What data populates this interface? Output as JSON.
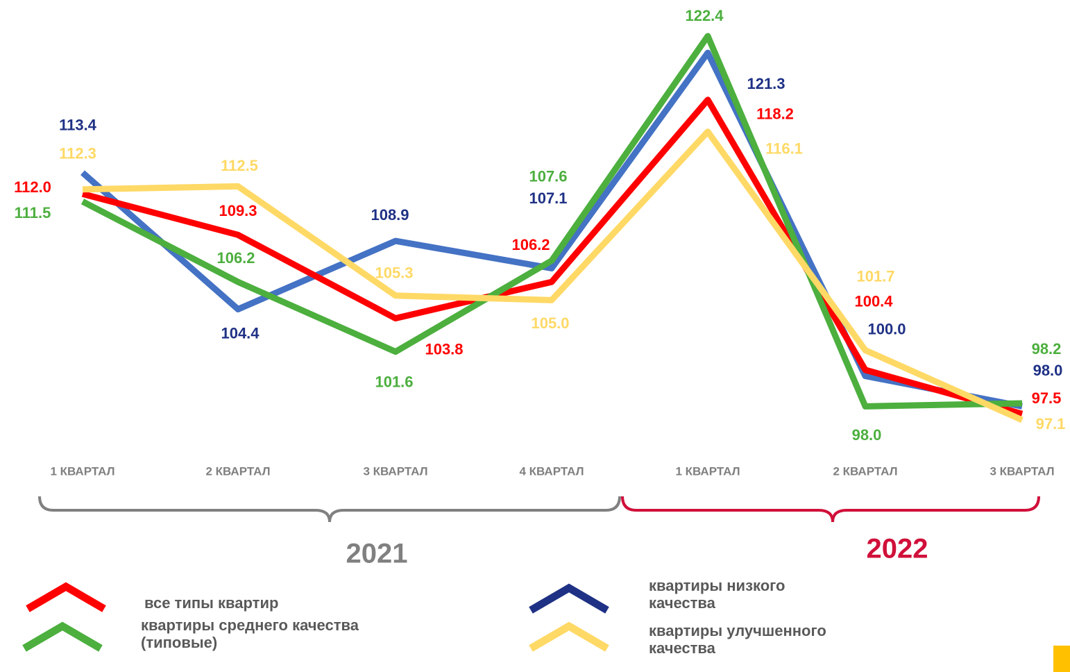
{
  "chart_data": {
    "type": "line",
    "groups": [
      {
        "label": "2021",
        "categories": [
          "1 КВАРТАЛ",
          "2 КВАРТАЛ",
          "3 КВАРТАЛ",
          "4 КВАРТАЛ"
        ]
      },
      {
        "label": "2022",
        "categories": [
          "1 КВАРТАЛ",
          "2 КВАРТАЛ",
          "3 КВАРТАЛ"
        ]
      }
    ],
    "series": [
      {
        "name": "все типы квартир",
        "color": "#ff0000",
        "label_color": "#ff0000",
        "values": [
          112.0,
          109.3,
          103.8,
          106.2,
          118.2,
          100.4,
          97.5
        ],
        "value_labels": [
          "112.0",
          "109.3",
          "103.8",
          "106.2",
          "118.2",
          "100.4",
          "97.5"
        ]
      },
      {
        "name": "квартиры низкого качества",
        "color": "#4472c4",
        "label_color": "#1f3185",
        "values": [
          113.4,
          104.4,
          108.9,
          107.1,
          121.3,
          100.0,
          98.0
        ],
        "value_labels": [
          "113.4",
          "104.4",
          "108.9",
          "107.1",
          "121.3",
          "100.0",
          "98.0"
        ]
      },
      {
        "name": "квартиры среднего качества (типовые)",
        "color": "#4caf3e",
        "label_color": "#4caf3e",
        "values": [
          111.5,
          106.2,
          101.6,
          107.6,
          122.4,
          98.0,
          98.2
        ],
        "value_labels": [
          "111.5",
          "106.2",
          "101.6",
          "107.6",
          "122.4",
          "98.0",
          "98.2"
        ]
      },
      {
        "name": "квартиры улучшенного качества",
        "color": "#ffd966",
        "label_color": "#ffd966",
        "values": [
          112.3,
          112.5,
          105.3,
          105.0,
          116.1,
          101.7,
          97.1
        ],
        "value_labels": [
          "112.3",
          "112.5",
          "105.3",
          "105.0",
          "116.1",
          "101.7",
          "97.1"
        ]
      }
    ]
  }
}
